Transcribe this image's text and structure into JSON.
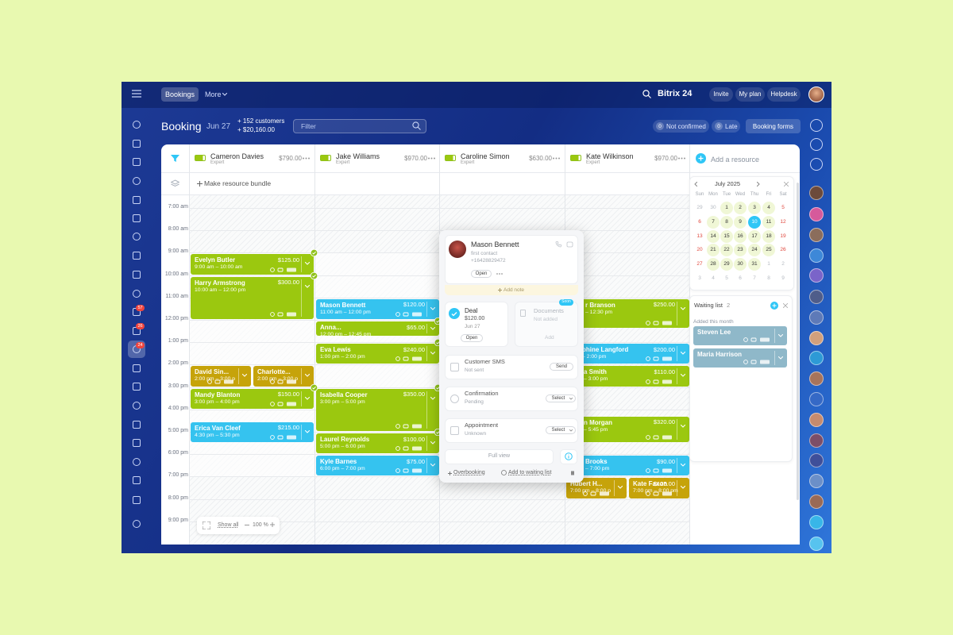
{
  "topbar": {
    "tabs": [
      "Bookings",
      "More"
    ],
    "brand": "Bitrix 24",
    "buttons": [
      "Invite",
      "My plan",
      "Helpdesk"
    ]
  },
  "sidebar_badges": [
    "57",
    "26",
    "24"
  ],
  "toolbar": {
    "title": "Booking",
    "date": "Jun 27",
    "stats": [
      "+ 152 customers",
      "+ $20,160.00"
    ],
    "filter": "Filter",
    "counters": [
      {
        "count": "0",
        "label": "Not confirmed"
      },
      {
        "count": "0",
        "label": "Late"
      }
    ],
    "forms": "Booking forms"
  },
  "resources": [
    {
      "name": "Cameron Davies",
      "role": "Expert",
      "amount": "$790.00"
    },
    {
      "name": "Jake Williams",
      "role": "Expert",
      "amount": "$970.00"
    },
    {
      "name": "Caroline Simon",
      "role": "Expert",
      "amount": "$630.00"
    },
    {
      "name": "Kate Wilkinson",
      "role": "Expert",
      "amount": "$970.00"
    }
  ],
  "add_resource": "Add a resource",
  "bundle": "Make resource bundle",
  "times": [
    "7:00 am",
    "8:00 am",
    "9:00 am",
    "10:00 am",
    "11:00 am",
    "12:00 pm",
    "1:00 pm",
    "2:00 pm",
    "3:00 pm",
    "4:00 pm",
    "5:00 pm",
    "6:00 pm",
    "7:00 pm",
    "8:00 pm",
    "9:00 pm"
  ],
  "bookings": [
    {
      "name": "Evelyn Butler",
      "time": "9:00 am – 10:00 am",
      "amount": "$125.00"
    },
    {
      "name": "Harry Armstrong",
      "time": "10:00 am – 12:00 pm",
      "amount": "$300.00"
    },
    {
      "name": "David Sin...",
      "time": "2:00 pm – 3:00 p"
    },
    {
      "name": "Charlotte...",
      "time": "2:00 pm – 3:00 p"
    },
    {
      "name": "Mandy Blanton",
      "time": "3:00 pm – 4:00 pm",
      "amount": "$150.00"
    },
    {
      "name": "Erica Van Cleef",
      "time": "4:30 pm – 5:30 pm",
      "amount": "$215.00"
    },
    {
      "name": "Mason Bennett",
      "time": "11:00 am – 12:00 pm",
      "amount": "$120.00"
    },
    {
      "name": "Anna...",
      "time": "12:00 pm – 12:45 pm",
      "amount": "$65.00"
    },
    {
      "name": "Eva Lewis",
      "time": "1:00 pm – 2:00 pm",
      "amount": "$240.00"
    },
    {
      "name": "Isabella Cooper",
      "time": "3:00 pm – 5:00 pm",
      "amount": "$350.00"
    },
    {
      "name": "Laurel Reynolds",
      "time": "5:00 pm – 6:00 pm",
      "amount": "$100.00"
    },
    {
      "name": "Kyle Barnes",
      "time": "6:00 pm – 7:00 pm",
      "amount": "$75.00"
    },
    {
      "name": "r Branson",
      "time": "– 12:30 pm",
      "amount": "$250.00"
    },
    {
      "name": "phine Langford",
      "time": "– 2:00 pm",
      "amount": "$200.00"
    },
    {
      "name": "a Smith",
      "time": "– 3:00 pm",
      "amount": "$110.00"
    },
    {
      "name": "n Morgan",
      "time": "– 5:45 pm",
      "amount": "$320.00"
    },
    {
      "name": "Brooks",
      "time": "– 7:00 pm",
      "amount": "$90.00"
    },
    {
      "name": "Hubert H...",
      "time": "7:00 pm – 8:00 p"
    },
    {
      "name": "Kate Faxon",
      "time": "7:00 pm – 8:00 pm",
      "amount": "$125.00"
    }
  ],
  "popup": {
    "name": "Mason Bennett",
    "subtitle": "first contact",
    "phone": "+16428829472",
    "open": "Open",
    "add_note": "Add note",
    "deal": {
      "title": "Deal",
      "amount": "$120.00",
      "date": "Jun 27",
      "open": "Open"
    },
    "documents": {
      "title": "Documents",
      "badge": "Soon",
      "status": "Not added",
      "action": "Add"
    },
    "rows": [
      {
        "title": "Customer SMS",
        "status": "Not sent",
        "action": "Send"
      },
      {
        "title": "Confirmation",
        "status": "Pending",
        "action": "Select"
      },
      {
        "title": "Appointment",
        "status": "Unknown",
        "action": "Select"
      }
    ],
    "full_view": "Full view",
    "overbooking": "Overbooking",
    "waiting_link": "Add to waiting list"
  },
  "calendar": {
    "month": "July 2025",
    "weekdays": [
      "Sun",
      "Mon",
      "Tue",
      "Wed",
      "Thu",
      "Fri",
      "Sat"
    ],
    "weeks": [
      [
        "29",
        "30",
        "1",
        "2",
        "3",
        "4",
        "5"
      ],
      [
        "6",
        "7",
        "8",
        "9",
        "10",
        "11",
        "12"
      ],
      [
        "13",
        "14",
        "15",
        "16",
        "17",
        "18",
        "19"
      ],
      [
        "20",
        "21",
        "22",
        "23",
        "24",
        "25",
        "26"
      ],
      [
        "27",
        "28",
        "29",
        "30",
        "31",
        "1",
        "2"
      ],
      [
        "3",
        "4",
        "5",
        "6",
        "7",
        "8",
        "9"
      ]
    ]
  },
  "waiting": {
    "title": "Waiting list",
    "count": "2",
    "section": "Added this month",
    "items": [
      "Steven Lee",
      "Maria Harrison"
    ]
  },
  "zoom": {
    "show_all": "Show all",
    "level": "100 %"
  }
}
